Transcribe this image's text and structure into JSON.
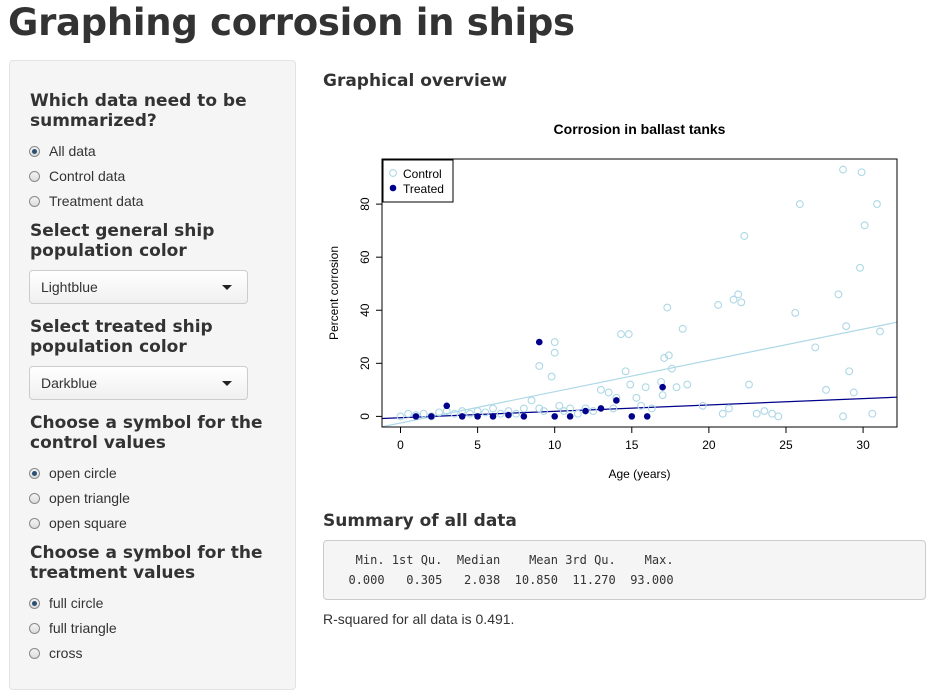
{
  "page": {
    "title": "Graphing corrosion in ships"
  },
  "sidebar": {
    "data_section": {
      "title": "Which data need to be summarized?",
      "options": [
        {
          "label": "All data",
          "checked": true
        },
        {
          "label": "Control data",
          "checked": false
        },
        {
          "label": "Treatment data",
          "checked": false
        }
      ]
    },
    "general_color": {
      "title": "Select general ship population color",
      "value": "Lightblue"
    },
    "treated_color": {
      "title": "Select treated ship population color",
      "value": "Darkblue"
    },
    "control_symbol": {
      "title": "Choose a symbol for the control values",
      "options": [
        {
          "label": "open circle",
          "checked": true
        },
        {
          "label": "open triangle",
          "checked": false
        },
        {
          "label": "open square",
          "checked": false
        }
      ]
    },
    "treatment_symbol": {
      "title": "Choose a symbol for the treatment values",
      "options": [
        {
          "label": "full circle",
          "checked": true
        },
        {
          "label": "full triangle",
          "checked": false
        },
        {
          "label": "cross",
          "checked": false
        }
      ]
    }
  },
  "main": {
    "overview_title": "Graphical overview",
    "summary_title": "Summary of all data",
    "summary_output": "   Min. 1st Qu.  Median    Mean 3rd Qu.    Max.\n  0.000   0.305   2.038  10.850  11.270  93.000",
    "rsquared_text": "R-squared for all data is 0.491."
  },
  "colors": {
    "control": "#add8e6",
    "treated": "#00008b"
  },
  "chart_data": {
    "type": "scatter",
    "title": "Corrosion in ballast tanks",
    "xlabel": "Age (years)",
    "ylabel": "Percent corrosion",
    "xlim": [
      -1.2,
      32.2
    ],
    "ylim": [
      -4,
      97
    ],
    "xticks": [
      0,
      5,
      10,
      15,
      20,
      25,
      30
    ],
    "yticks": [
      0,
      20,
      40,
      60,
      80
    ],
    "legend_position": "top-left",
    "series": [
      {
        "name": "Control",
        "symbol": "open circle",
        "points": [
          [
            0,
            0
          ],
          [
            0.5,
            1
          ],
          [
            1,
            0.5
          ],
          [
            1.5,
            1
          ],
          [
            2,
            0
          ],
          [
            2.5,
            1.5
          ],
          [
            3,
            2
          ],
          [
            3.5,
            1
          ],
          [
            4,
            2
          ],
          [
            4.5,
            1
          ],
          [
            5,
            2
          ],
          [
            5.5,
            1.5
          ],
          [
            6,
            3
          ],
          [
            6.5,
            1
          ],
          [
            7,
            2
          ],
          [
            7.5,
            1
          ],
          [
            8,
            3
          ],
          [
            8.5,
            6
          ],
          [
            9,
            3
          ],
          [
            9.3,
            2
          ],
          [
            9,
            19
          ],
          [
            9.8,
            15
          ],
          [
            10,
            24
          ],
          [
            10,
            28
          ],
          [
            10.3,
            4
          ],
          [
            10.6,
            2
          ],
          [
            11,
            3
          ],
          [
            11.5,
            1
          ],
          [
            12,
            3
          ],
          [
            12.5,
            2
          ],
          [
            13,
            10
          ],
          [
            13.5,
            9
          ],
          [
            13.8,
            3
          ],
          [
            14,
            7
          ],
          [
            14.3,
            31
          ],
          [
            14.8,
            31
          ],
          [
            14.6,
            17
          ],
          [
            14.9,
            12
          ],
          [
            15.3,
            7
          ],
          [
            15.6,
            4
          ],
          [
            15.9,
            11
          ],
          [
            16.3,
            3
          ],
          [
            16.9,
            13
          ],
          [
            17,
            8
          ],
          [
            17.1,
            22
          ],
          [
            17.3,
            41
          ],
          [
            17.4,
            23
          ],
          [
            17.6,
            18
          ],
          [
            17.9,
            11
          ],
          [
            18.3,
            33
          ],
          [
            18.6,
            12
          ],
          [
            19.6,
            4
          ],
          [
            20.6,
            42
          ],
          [
            20.9,
            1
          ],
          [
            21.3,
            3
          ],
          [
            21.6,
            44
          ],
          [
            21.9,
            46
          ],
          [
            22.1,
            43
          ],
          [
            22.3,
            68
          ],
          [
            22.6,
            12
          ],
          [
            23.1,
            1
          ],
          [
            23.6,
            2
          ],
          [
            24.1,
            1
          ],
          [
            24.5,
            0
          ],
          [
            25.6,
            39
          ],
          [
            25.9,
            80
          ],
          [
            26.9,
            26
          ],
          [
            27.6,
            10
          ],
          [
            28.4,
            46
          ],
          [
            28.7,
            0
          ],
          [
            28.9,
            34
          ],
          [
            29.1,
            17
          ],
          [
            29.4,
            9
          ],
          [
            29.8,
            56
          ],
          [
            29.9,
            92
          ],
          [
            30.1,
            72
          ],
          [
            30.6,
            1
          ],
          [
            30.9,
            80
          ],
          [
            31.1,
            32
          ],
          [
            28.7,
            93
          ]
        ]
      },
      {
        "name": "Treated",
        "symbol": "full circle",
        "points": [
          [
            1,
            0
          ],
          [
            2,
            0
          ],
          [
            3,
            4
          ],
          [
            4,
            0
          ],
          [
            5,
            0
          ],
          [
            6,
            0
          ],
          [
            7,
            0.5
          ],
          [
            8,
            0
          ],
          [
            9,
            28
          ],
          [
            10,
            0
          ],
          [
            11,
            0
          ],
          [
            12,
            2
          ],
          [
            13,
            3
          ],
          [
            14,
            6
          ],
          [
            15,
            0
          ],
          [
            16,
            0
          ],
          [
            17,
            11
          ]
        ]
      }
    ],
    "fit_lines": [
      {
        "series": "Control",
        "intercept": -2.5,
        "slope": 1.18
      },
      {
        "series": "Treated",
        "intercept": -0.5,
        "slope": 0.24
      }
    ]
  }
}
